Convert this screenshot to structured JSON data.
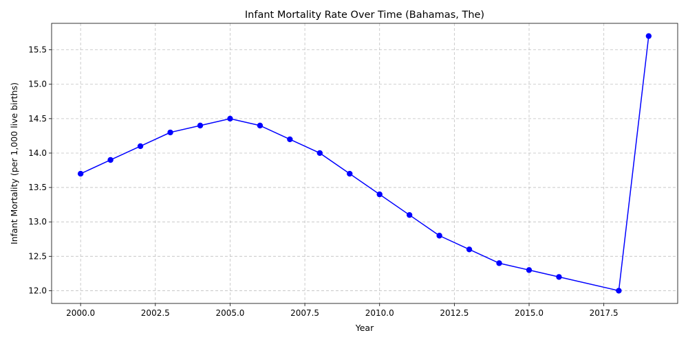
{
  "chart_data": {
    "type": "line",
    "title": "Infant Mortality Rate Over Time (Bahamas, The)",
    "xlabel": "Year",
    "ylabel": "Infant Mortality (per 1,000 live births)",
    "x_ticks": [
      2000.0,
      2002.5,
      2005.0,
      2007.5,
      2010.0,
      2012.5,
      2015.0,
      2017.5
    ],
    "x_tick_labels": [
      "2000.0",
      "2002.5",
      "2005.0",
      "2007.5",
      "2010.0",
      "2012.5",
      "2015.0",
      "2017.5"
    ],
    "y_ticks": [
      12.0,
      12.5,
      13.0,
      13.5,
      14.0,
      14.5,
      15.0,
      15.5
    ],
    "y_tick_labels": [
      "12.0",
      "12.5",
      "13.0",
      "13.5",
      "14.0",
      "14.5",
      "15.0",
      "15.5"
    ],
    "xlim": [
      1999.03,
      2019.97
    ],
    "ylim": [
      11.815,
      15.885
    ],
    "grid": true,
    "color": "#0000ff",
    "marker": "circle",
    "series": [
      {
        "x": [
          2000,
          2001,
          2002,
          2003,
          2004,
          2005,
          2006,
          2007,
          2008,
          2009,
          2010,
          2011,
          2012,
          2013,
          2014,
          2015,
          2016,
          2018,
          2019
        ],
        "values": [
          13.7,
          13.9,
          14.1,
          14.3,
          14.4,
          14.5,
          14.4,
          14.2,
          14.0,
          13.7,
          13.4,
          13.1,
          12.8,
          12.6,
          12.4,
          12.3,
          12.2,
          12.0,
          15.7
        ]
      }
    ]
  }
}
